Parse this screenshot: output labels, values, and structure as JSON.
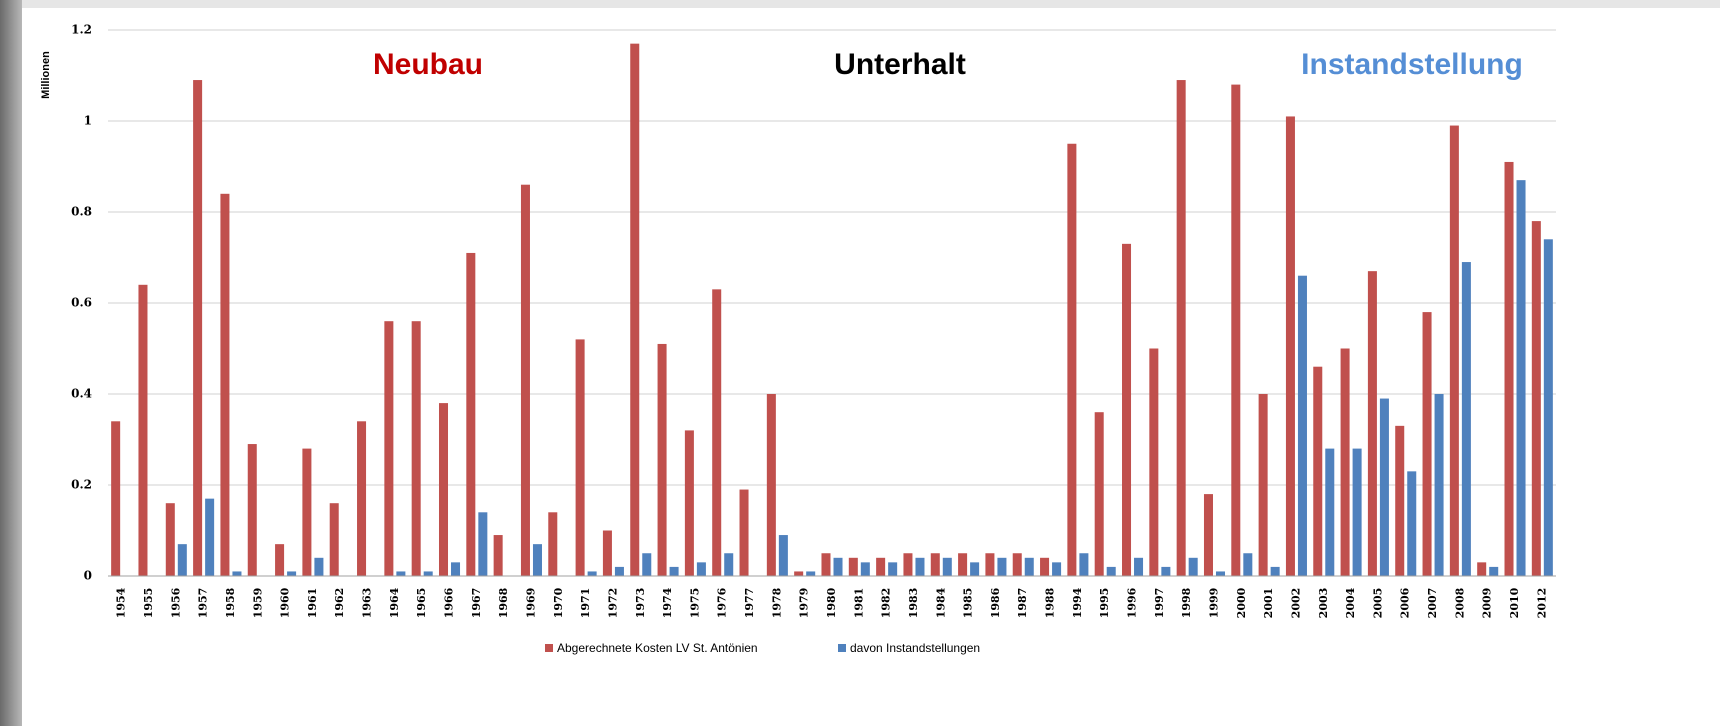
{
  "chart_data": {
    "type": "bar",
    "y_label": "Millionen",
    "annotations": [
      {
        "text": "Neubau",
        "color": "#c00000"
      },
      {
        "text": "Unterhalt",
        "color": "#000000"
      },
      {
        "text": "Instandstellung",
        "color": "#558ed5"
      }
    ],
    "categories": [
      "1954",
      "1955",
      "1956",
      "1957",
      "1958",
      "1959",
      "1960",
      "1961",
      "1962",
      "1963",
      "1964",
      "1965",
      "1966",
      "1967",
      "1968",
      "1969",
      "1970",
      "1971",
      "1972",
      "1973",
      "1974",
      "1975",
      "1976",
      "1977",
      "1978",
      "1979",
      "1980",
      "1981",
      "1982",
      "1983",
      "1984",
      "1985",
      "1986",
      "1987",
      "1988",
      "1994",
      "1995",
      "1996",
      "1997",
      "1998",
      "1999",
      "2000",
      "2001",
      "2002",
      "2003",
      "2004",
      "2005",
      "2006",
      "2007",
      "2008",
      "2009",
      "2010",
      "2012"
    ],
    "series": [
      {
        "name": "Abgerechnete Kosten LV St. Antönien",
        "color": "#c0504d",
        "values": [
          0.34,
          0.64,
          0.16,
          1.09,
          0.84,
          0.29,
          0.07,
          0.28,
          0.16,
          0.34,
          0.56,
          0.56,
          0.38,
          0.71,
          0.09,
          0.86,
          0.14,
          0.52,
          0.1,
          1.17,
          0.51,
          0.32,
          0.63,
          0.19,
          0.4,
          0.01,
          0.05,
          0.04,
          0.04,
          0.05,
          0.05,
          0.05,
          0.05,
          0.05,
          0.04,
          0.95,
          0.36,
          0.73,
          0.5,
          1.09,
          0.18,
          1.08,
          0.4,
          1.01,
          0.46,
          0.5,
          0.67,
          0.33,
          0.58,
          0.99,
          0.03,
          0.91,
          0.78
        ]
      },
      {
        "name": "davon Instandstellungen",
        "color": "#4f81bd",
        "values": [
          0,
          0,
          0.07,
          0.17,
          0.01,
          0,
          0.01,
          0.04,
          0,
          0,
          0.01,
          0.01,
          0.03,
          0.14,
          0,
          0.07,
          0,
          0.01,
          0.02,
          0.05,
          0.02,
          0.03,
          0.05,
          0,
          0.09,
          0.01,
          0.04,
          0.03,
          0.03,
          0.04,
          0.04,
          0.03,
          0.04,
          0.04,
          0.03,
          0.05,
          0.02,
          0.04,
          0.02,
          0.04,
          0.01,
          0.05,
          0.02,
          0.66,
          0.28,
          0.28,
          0.39,
          0.23,
          0.4,
          0.69,
          0.02,
          0.87,
          0.74
        ]
      }
    ],
    "ylim": [
      0,
      1.2
    ],
    "yticks": [
      0,
      0.2,
      0.4,
      0.6,
      0.8,
      1,
      1.2
    ],
    "grid": true
  }
}
